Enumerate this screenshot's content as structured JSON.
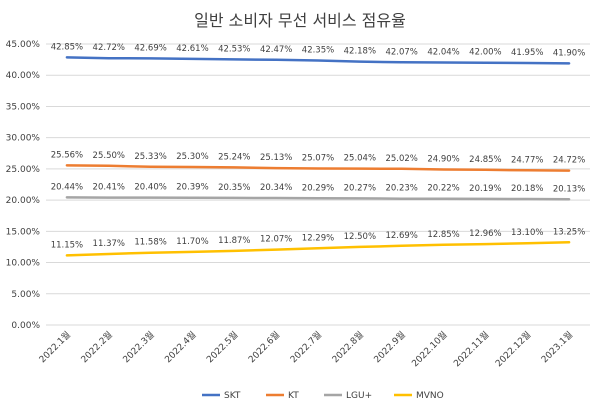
{
  "chart_data": {
    "type": "line",
    "title": "일반 소비자 무선 서비스 점유율",
    "categories": [
      "2022.1월",
      "2022.2월",
      "2022.3월",
      "2022.4월",
      "2022.5월",
      "2022.6월",
      "2022.7월",
      "2022.8월",
      "2022.9월",
      "2022.10월",
      "2022.11월",
      "2022.12월",
      "2023.1월"
    ],
    "ylim": [
      0,
      45
    ],
    "yticks": [
      "0.00%",
      "5.00%",
      "10.00%",
      "15.00%",
      "20.00%",
      "25.00%",
      "30.00%",
      "35.00%",
      "40.00%",
      "45.00%"
    ],
    "grid": true,
    "legend_position": "bottom",
    "series": [
      {
        "name": "SKT",
        "color": "#4472c4",
        "values": [
          42.85,
          42.72,
          42.69,
          42.61,
          42.53,
          42.47,
          42.35,
          42.18,
          42.07,
          42.04,
          42.0,
          41.95,
          41.9
        ],
        "labels": [
          "42.85%",
          "42.72%",
          "42.69%",
          "42.61%",
          "42.53%",
          "42.47%",
          "42.35%",
          "42.18%",
          "42.07%",
          "42.04%",
          "42.00%",
          "41.95%",
          "41.90%"
        ]
      },
      {
        "name": "KT",
        "color": "#ed7d31",
        "values": [
          25.56,
          25.5,
          25.33,
          25.3,
          25.24,
          25.13,
          25.07,
          25.04,
          25.02,
          24.9,
          24.85,
          24.77,
          24.72
        ],
        "labels": [
          "25.56%",
          "25.50%",
          "25.33%",
          "25.30%",
          "25.24%",
          "25.13%",
          "25.07%",
          "25.04%",
          "25.02%",
          "24.90%",
          "24.85%",
          "24.77%",
          "24.72%"
        ]
      },
      {
        "name": "LGU+",
        "color": "#a5a5a5",
        "values": [
          20.44,
          20.41,
          20.4,
          20.39,
          20.35,
          20.34,
          20.29,
          20.27,
          20.23,
          20.22,
          20.19,
          20.18,
          20.13
        ],
        "labels": [
          "20.44%",
          "20.41%",
          "20.40%",
          "20.39%",
          "20.35%",
          "20.34%",
          "20.29%",
          "20.27%",
          "20.23%",
          "20.22%",
          "20.19%",
          "20.18%",
          "20.13%"
        ]
      },
      {
        "name": "MVNO",
        "color": "#ffc000",
        "values": [
          11.15,
          11.37,
          11.58,
          11.7,
          11.87,
          12.07,
          12.29,
          12.5,
          12.69,
          12.85,
          12.96,
          13.1,
          13.25
        ],
        "labels": [
          "11.15%",
          "11.37%",
          "11.58%",
          "11.70%",
          "11.87%",
          "12.07%",
          "12.29%",
          "12.50%",
          "12.69%",
          "12.85%",
          "12.96%",
          "13.10%",
          "13.25%"
        ]
      }
    ]
  }
}
